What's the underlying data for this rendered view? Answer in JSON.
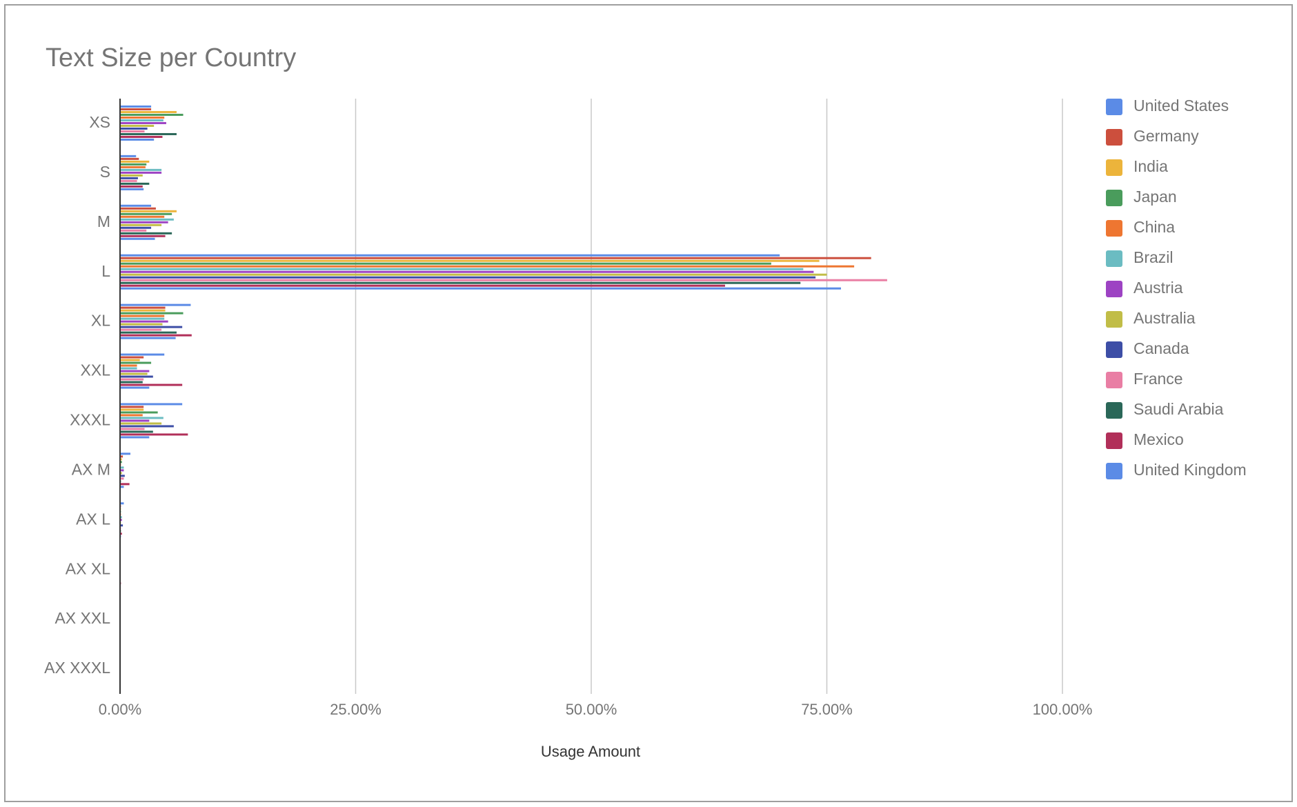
{
  "chart_data": {
    "type": "bar",
    "orientation": "horizontal",
    "title": "Text Size per Country",
    "x_label": "Usage Amount",
    "categories": [
      "XS",
      "S",
      "M",
      "L",
      "XL",
      "XXL",
      "XXXL",
      "AX M",
      "AX L",
      "AX XL",
      "AX XXL",
      "AX XXXL"
    ],
    "xlim": [
      0,
      100
    ],
    "xticks": [
      {
        "value": 0,
        "label": "0.00%"
      },
      {
        "value": 25,
        "label": "25.00%"
      },
      {
        "value": 50,
        "label": "50.00%"
      },
      {
        "value": 75,
        "label": "75.00%"
      },
      {
        "value": 100,
        "label": "100.00%"
      }
    ],
    "grid": true,
    "legend": "right",
    "series": [
      {
        "name": "United States",
        "color": "#5b8be6",
        "values": [
          3.3,
          1.7,
          3.3,
          70.0,
          7.5,
          4.7,
          6.6,
          1.1,
          0.4,
          0.05,
          0.02,
          0.02
        ]
      },
      {
        "name": "Germany",
        "color": "#cc4f3d",
        "values": [
          3.3,
          2.0,
          3.8,
          79.7,
          4.8,
          2.5,
          2.5,
          0.3,
          0.1,
          0.05,
          0.02,
          0.02
        ]
      },
      {
        "name": "India",
        "color": "#ecb43b",
        "values": [
          6.0,
          3.1,
          6.0,
          74.2,
          4.8,
          2.1,
          2.5,
          0.2,
          0.1,
          0.05,
          0.02,
          0.02
        ]
      },
      {
        "name": "Japan",
        "color": "#4a9c5c",
        "values": [
          6.7,
          2.8,
          5.5,
          69.1,
          6.7,
          3.3,
          4.0,
          0.2,
          0.1,
          0.05,
          0.02,
          0.02
        ]
      },
      {
        "name": "China",
        "color": "#ee7631",
        "values": [
          4.7,
          2.7,
          4.7,
          77.9,
          4.7,
          1.8,
          2.4,
          0.1,
          0.1,
          0.05,
          0.02,
          0.02
        ]
      },
      {
        "name": "Brazil",
        "color": "#6bbcc2",
        "values": [
          4.6,
          4.4,
          5.7,
          72.5,
          4.7,
          1.8,
          4.6,
          0.4,
          0.2,
          0.05,
          0.02,
          0.02
        ]
      },
      {
        "name": "Austria",
        "color": "#9d43c3",
        "values": [
          4.9,
          4.4,
          5.1,
          73.6,
          5.1,
          3.1,
          3.1,
          0.4,
          0.2,
          0.05,
          0.02,
          0.02
        ]
      },
      {
        "name": "Australia",
        "color": "#c1bd47",
        "values": [
          3.6,
          2.4,
          4.4,
          75.0,
          4.5,
          2.9,
          4.4,
          0.2,
          0.1,
          0.05,
          0.02,
          0.02
        ]
      },
      {
        "name": "Canada",
        "color": "#3d4ea6",
        "values": [
          2.9,
          1.9,
          3.3,
          73.8,
          6.6,
          3.5,
          5.7,
          0.5,
          0.3,
          0.05,
          0.02,
          0.02
        ]
      },
      {
        "name": "France",
        "color": "#e97ea4",
        "values": [
          2.6,
          1.8,
          2.8,
          81.4,
          4.4,
          2.5,
          2.6,
          0.4,
          0.1,
          0.05,
          0.02,
          0.02
        ]
      },
      {
        "name": "Saudi Arabia",
        "color": "#2a6758",
        "values": [
          6.0,
          3.1,
          5.5,
          72.2,
          6.0,
          2.4,
          3.5,
          0.1,
          0.1,
          0.05,
          0.02,
          0.02
        ]
      },
      {
        "name": "Mexico",
        "color": "#b12f59",
        "values": [
          4.5,
          2.4,
          4.8,
          64.2,
          7.6,
          6.6,
          7.2,
          1.0,
          0.2,
          0.1,
          0.02,
          0.02
        ]
      },
      {
        "name": "United Kingdom",
        "color": "#5b8be6",
        "values": [
          3.6,
          2.5,
          3.7,
          76.5,
          5.9,
          3.1,
          3.1,
          0.4,
          0.1,
          0.05,
          0.02,
          0.02
        ]
      }
    ]
  }
}
